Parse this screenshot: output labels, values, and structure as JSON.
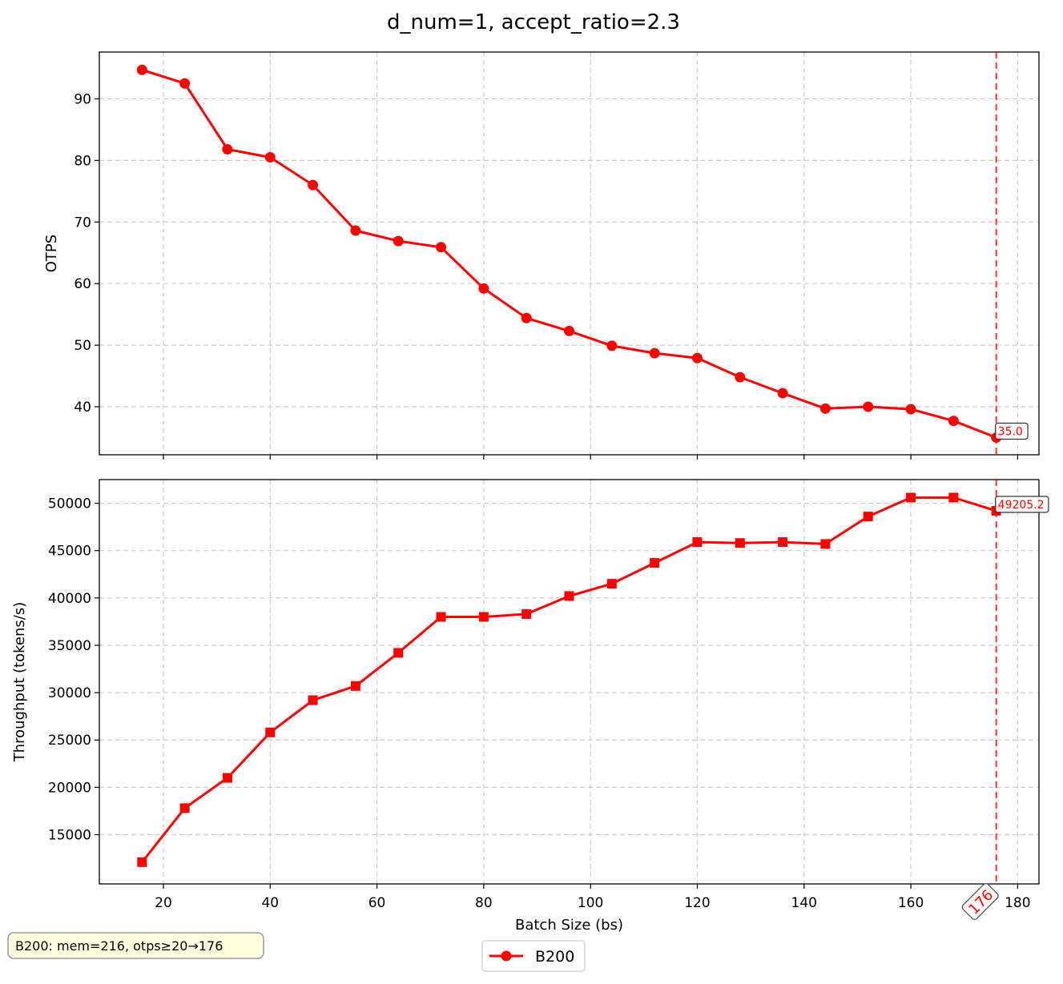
{
  "figure": {
    "title": "d_num=1, accept_ratio=2.3",
    "note": "B200: mem=216, otps≥20→176",
    "legend_label": "B200",
    "colors": {
      "series": "#ff0000",
      "grid": "#cccccc",
      "note_bg": "#ffffe0",
      "annotation_border": "#333333"
    }
  },
  "chart_data": [
    {
      "type": "line",
      "panel": "top",
      "xlabel": "",
      "ylabel": "OTPS",
      "xlim": [
        8,
        184
      ],
      "ylim": [
        32.2,
        97.6
      ],
      "xticks": [
        20,
        40,
        60,
        80,
        100,
        120,
        140,
        160,
        180
      ],
      "yticks": [
        40,
        50,
        60,
        70,
        80,
        90
      ],
      "grid": true,
      "marker": "circle",
      "series": [
        {
          "name": "B200",
          "x": [
            16,
            24,
            32,
            40,
            48,
            56,
            64,
            72,
            80,
            88,
            96,
            104,
            112,
            120,
            128,
            136,
            144,
            152,
            160,
            168,
            176
          ],
          "y": [
            94.7,
            92.5,
            81.8,
            80.5,
            76.0,
            68.6,
            66.9,
            65.9,
            59.2,
            54.4,
            52.3,
            49.9,
            48.7,
            47.9,
            44.8,
            42.2,
            39.7,
            40.0,
            39.6,
            37.7,
            35.0
          ]
        }
      ],
      "vline_x": 176,
      "annotation": "35.0"
    },
    {
      "type": "line",
      "panel": "bottom",
      "xlabel": "Batch Size (bs)",
      "ylabel": "Throughput (tokens/s)",
      "xlim": [
        8,
        184
      ],
      "ylim": [
        9800,
        52500
      ],
      "xticks": [
        20,
        40,
        60,
        80,
        100,
        120,
        140,
        160,
        180
      ],
      "yticks": [
        15000,
        20000,
        25000,
        30000,
        35000,
        40000,
        45000,
        50000
      ],
      "grid": true,
      "marker": "square",
      "series": [
        {
          "name": "B200",
          "x": [
            16,
            24,
            32,
            40,
            48,
            56,
            64,
            72,
            80,
            88,
            96,
            104,
            112,
            120,
            128,
            136,
            144,
            152,
            160,
            168,
            176
          ],
          "y": [
            12100,
            17800,
            21000,
            25800,
            29200,
            30700,
            34200,
            38000,
            38000,
            38300,
            40200,
            41500,
            43700,
            45900,
            45800,
            45900,
            45700,
            48600,
            50600,
            50600,
            49205.2
          ]
        }
      ],
      "vline_x": 176,
      "annotation": "49205.2",
      "vline_label": "176"
    }
  ]
}
